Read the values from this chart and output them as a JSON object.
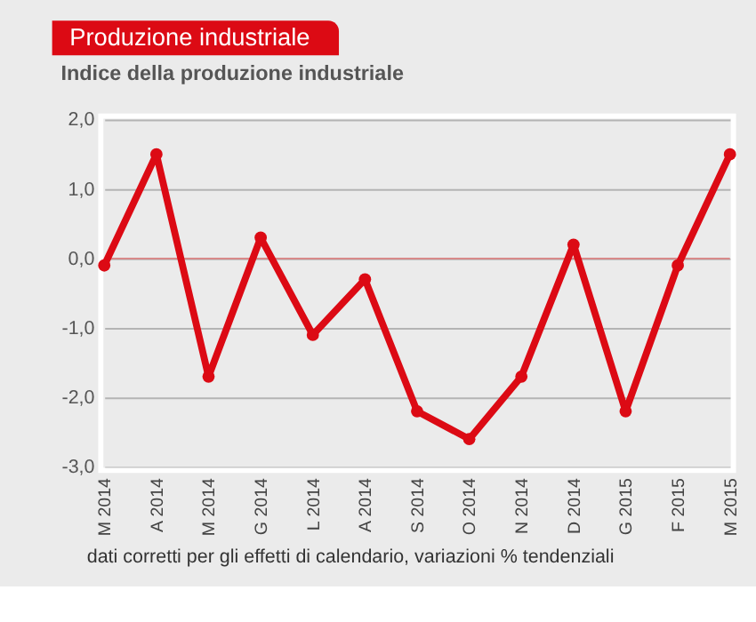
{
  "chart_data": {
    "type": "line",
    "title": "Produzione industriale",
    "subtitle": "Indice della produzione industriale",
    "categories": [
      "M 2014",
      "A 2014",
      "M 2014",
      "G 2014",
      "L 2014",
      "A 2014",
      "S 2014",
      "O 2014",
      "N 2014",
      "D 2014",
      "G 2015",
      "F 2015",
      "M 2015"
    ],
    "series": [
      {
        "color": "#dc0a14",
        "values": [
          -0.1,
          1.5,
          -1.7,
          0.3,
          -1.1,
          -0.3,
          -2.2,
          -2.6,
          -1.7,
          0.2,
          -2.2,
          -0.1,
          1.5
        ]
      }
    ],
    "ylim": [
      -3,
      2
    ],
    "yticks": [
      {
        "value": -3,
        "label": "-3,0"
      },
      {
        "value": -2,
        "label": "-2,0"
      },
      {
        "value": -1,
        "label": "-1,0"
      },
      {
        "value": 0,
        "label": "0,0"
      },
      {
        "value": 1,
        "label": "1,0"
      },
      {
        "value": 2,
        "label": "2,0"
      }
    ],
    "ref_lines": [
      {
        "axis": "y",
        "value": 0,
        "color": "#d88a8a"
      }
    ],
    "grid": "y",
    "marker": "circle",
    "line_style": "solid",
    "annotations": [
      "dati corretti per gli effetti di calendario, variazioni % tendenziali"
    ]
  }
}
